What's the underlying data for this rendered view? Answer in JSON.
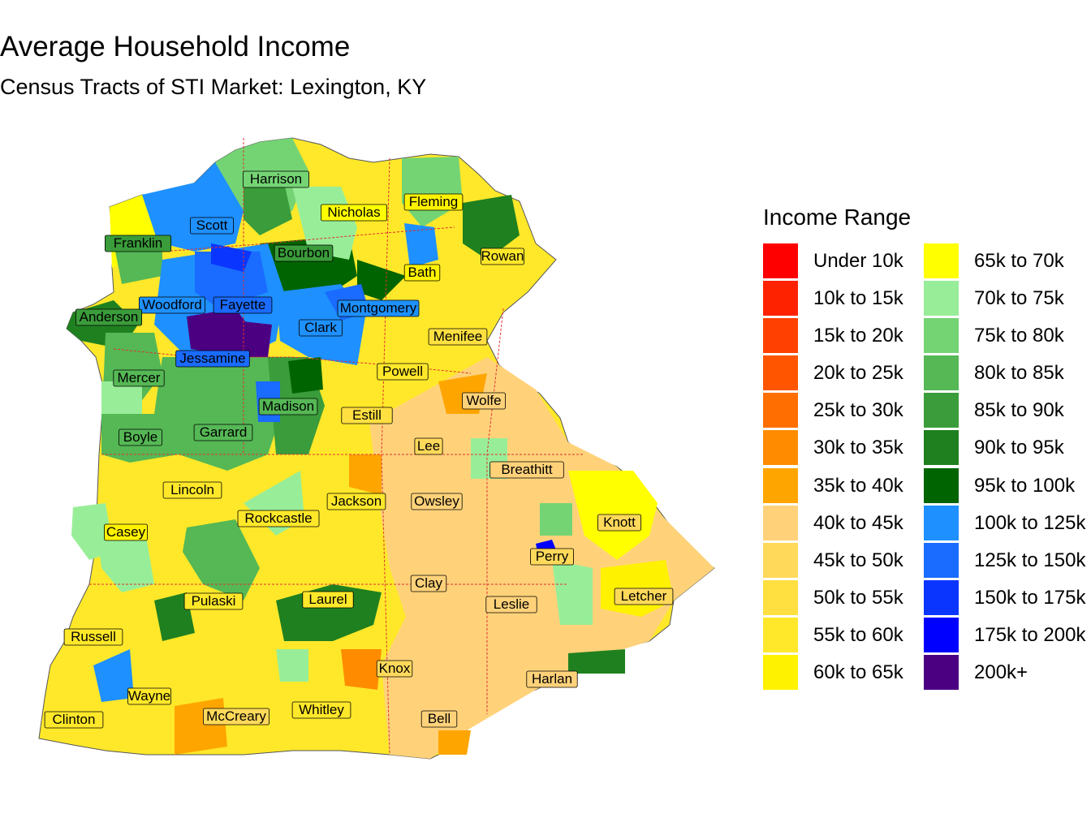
{
  "title": "Average Household Income",
  "subtitle": "Census Tracts of STI Market: Lexington, KY",
  "legend": {
    "title": "Income Range",
    "items": [
      {
        "label": "Under 10k",
        "color": "#FF0000"
      },
      {
        "label": "10k to 15k",
        "color": "#FF2200"
      },
      {
        "label": "15k to 20k",
        "color": "#FF4000"
      },
      {
        "label": "20k to 25k",
        "color": "#FF5500"
      },
      {
        "label": "25k to 30k",
        "color": "#FF6E00"
      },
      {
        "label": "30k to 35k",
        "color": "#FF8C00"
      },
      {
        "label": "35k to 40k",
        "color": "#FFA500"
      },
      {
        "label": "40k to 45k",
        "color": "#FFD27A"
      },
      {
        "label": "45k to 50k",
        "color": "#FFD95A"
      },
      {
        "label": "50k to 55k",
        "color": "#FFE040"
      },
      {
        "label": "55k to 60k",
        "color": "#FFE82A"
      },
      {
        "label": "60k to 65k",
        "color": "#FFF200"
      },
      {
        "label": "65k to 70k",
        "color": "#FFFF00"
      },
      {
        "label": "70k to 75k",
        "color": "#98EE98"
      },
      {
        "label": "75k to 80k",
        "color": "#74D474"
      },
      {
        "label": "80k to 85k",
        "color": "#55B855"
      },
      {
        "label": "85k to 90k",
        "color": "#3A9C3A"
      },
      {
        "label": "90k to 95k",
        "color": "#1F801F"
      },
      {
        "label": "95k to 100k",
        "color": "#006400"
      },
      {
        "label": "100k to 125k",
        "color": "#1E90FF"
      },
      {
        "label": "125k to 150k",
        "color": "#1A6BFF"
      },
      {
        "label": "150k to 175k",
        "color": "#0A35FF"
      },
      {
        "label": "175k to 200k",
        "color": "#0000FF"
      },
      {
        "label": "200k+",
        "color": "#4B0082"
      }
    ]
  },
  "counties": [
    {
      "name": "Harrison",
      "color": "#74D474"
    },
    {
      "name": "Fleming",
      "color": "#FFF200"
    },
    {
      "name": "Nicholas",
      "color": "#FFFF00"
    },
    {
      "name": "Scott",
      "color": "#1E90FF"
    },
    {
      "name": "Franklin",
      "color": "#3A9C3A"
    },
    {
      "name": "Bourbon",
      "color": "#3A9C3A"
    },
    {
      "name": "Rowan",
      "color": "#FFE82A"
    },
    {
      "name": "Bath",
      "color": "#FFF200"
    },
    {
      "name": "Woodford",
      "color": "#1E90FF"
    },
    {
      "name": "Fayette",
      "color": "#1A6BFF"
    },
    {
      "name": "Montgomery",
      "color": "#1E90FF"
    },
    {
      "name": "Anderson",
      "color": "#3A9C3A"
    },
    {
      "name": "Clark",
      "color": "#1E90FF"
    },
    {
      "name": "Menifee",
      "color": "#FFE040"
    },
    {
      "name": "Jessamine",
      "color": "#1A6BFF"
    },
    {
      "name": "Powell",
      "color": "#FFE82A"
    },
    {
      "name": "Mercer",
      "color": "#55B855"
    },
    {
      "name": "Wolfe",
      "color": "#FFD27A"
    },
    {
      "name": "Madison",
      "color": "#55B855"
    },
    {
      "name": "Estill",
      "color": "#FFE040"
    },
    {
      "name": "Boyle",
      "color": "#55B855"
    },
    {
      "name": "Garrard",
      "color": "#55B855"
    },
    {
      "name": "Lee",
      "color": "#FFD95A"
    },
    {
      "name": "Breathitt",
      "color": "#FFD27A"
    },
    {
      "name": "Lincoln",
      "color": "#FFE82A"
    },
    {
      "name": "Jackson",
      "color": "#FFE82A"
    },
    {
      "name": "Owsley",
      "color": "#FFD27A"
    },
    {
      "name": "Casey",
      "color": "#FFF200"
    },
    {
      "name": "Rockcastle",
      "color": "#FFE82A"
    },
    {
      "name": "Knott",
      "color": "#FFD95A"
    },
    {
      "name": "Perry",
      "color": "#FFD95A"
    },
    {
      "name": "Clay",
      "color": "#FFD27A"
    },
    {
      "name": "Pulaski",
      "color": "#FFE82A"
    },
    {
      "name": "Laurel",
      "color": "#FFE82A"
    },
    {
      "name": "Leslie",
      "color": "#FFD27A"
    },
    {
      "name": "Letcher",
      "color": "#FFD95A"
    },
    {
      "name": "Russell",
      "color": "#FFE82A"
    },
    {
      "name": "Knox",
      "color": "#FFD95A"
    },
    {
      "name": "Harlan",
      "color": "#FFD27A"
    },
    {
      "name": "Wayne",
      "color": "#FFE82A"
    },
    {
      "name": "McCreary",
      "color": "#FFD95A"
    },
    {
      "name": "Whitley",
      "color": "#FFE82A"
    },
    {
      "name": "Clinton",
      "color": "#FFE82A"
    },
    {
      "name": "Bell",
      "color": "#FFD27A"
    }
  ]
}
